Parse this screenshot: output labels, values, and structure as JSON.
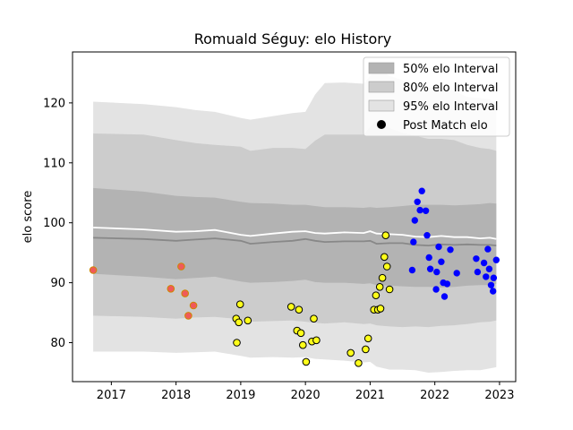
{
  "chart_data": {
    "type": "line",
    "title": "Romuald Séguy: elo History",
    "xlabel": "",
    "ylabel": "elo score",
    "xlim": [
      2016.4,
      2023.25
    ],
    "ylim": [
      73.5,
      128.5
    ],
    "x_ticks": [
      "2017",
      "2018",
      "2019",
      "2020",
      "2021",
      "2022",
      "2023"
    ],
    "x_tick_values": [
      2017,
      2018,
      2019,
      2020,
      2021,
      2022,
      2023
    ],
    "y_ticks": [
      "80",
      "90",
      "100",
      "110",
      "120"
    ],
    "y_tick_values": [
      80,
      90,
      100,
      110,
      120
    ],
    "grid": false,
    "legend_position": "top-right",
    "colors": {
      "band95": "#e3e3e3",
      "band80": "#cccccc",
      "band50": "#b3b3b3",
      "median_line": "#888888",
      "mean_line": "#ffffff",
      "dot_edge": "#000000"
    },
    "legend": [
      {
        "label": "50% elo Interval",
        "kind": "patch",
        "color": "#b3b3b3"
      },
      {
        "label": "80% elo Interval",
        "kind": "patch",
        "color": "#cccccc"
      },
      {
        "label": "95% elo Interval",
        "kind": "patch",
        "color": "#e3e3e3"
      },
      {
        "label": "Post Match elo",
        "kind": "marker",
        "color": "#000000"
      }
    ],
    "x": [
      2016.72,
      2017.5,
      2018.0,
      2018.3,
      2018.6,
      2019.0,
      2019.15,
      2019.5,
      2019.8,
      2020.0,
      2020.15,
      2020.3,
      2020.6,
      2020.9,
      2021.0,
      2021.1,
      2021.3,
      2021.5,
      2021.7,
      2021.9,
      2022.1,
      2022.3,
      2022.5,
      2022.7,
      2022.85,
      2022.95
    ],
    "median": [
      97.5,
      97.3,
      97.0,
      97.2,
      97.4,
      97.0,
      96.5,
      96.8,
      97.0,
      97.3,
      97.0,
      96.8,
      96.9,
      96.9,
      97.0,
      96.5,
      96.6,
      96.6,
      96.3,
      96.2,
      96.4,
      96.3,
      96.4,
      96.3,
      96.3,
      96.2
    ],
    "mean": [
      99.2,
      98.9,
      98.5,
      98.6,
      98.8,
      98.0,
      97.8,
      98.2,
      98.5,
      98.6,
      98.3,
      98.2,
      98.4,
      98.3,
      98.6,
      98.2,
      98.1,
      98.0,
      97.7,
      97.6,
      97.8,
      97.6,
      97.6,
      97.4,
      97.5,
      97.3
    ],
    "band50": {
      "lower": [
        91.5,
        91.0,
        90.6,
        90.8,
        91.0,
        90.2,
        90.0,
        90.1,
        90.3,
        90.5,
        90.1,
        90.0,
        90.0,
        89.8,
        89.9,
        89.6,
        89.5,
        89.4,
        89.3,
        89.3,
        89.2,
        89.3,
        89.5,
        89.6,
        89.6,
        89.8
      ],
      "upper": [
        105.8,
        105.2,
        104.5,
        104.3,
        104.2,
        103.5,
        103.3,
        103.2,
        103.0,
        103.0,
        102.8,
        102.6,
        102.6,
        102.5,
        102.6,
        102.5,
        102.6,
        102.8,
        103.0,
        103.0,
        103.0,
        102.9,
        103.0,
        103.1,
        103.3,
        103.2
      ]
    },
    "band80": {
      "lower": [
        84.5,
        84.3,
        84.0,
        84.2,
        84.3,
        83.9,
        83.5,
        83.6,
        83.7,
        83.5,
        83.3,
        83.2,
        83.4,
        83.1,
        83.2,
        82.9,
        82.7,
        82.6,
        82.7,
        82.6,
        82.8,
        82.9,
        83.1,
        83.4,
        83.5,
        83.7
      ],
      "upper": [
        114.9,
        114.7,
        113.8,
        113.3,
        113.0,
        112.7,
        112.0,
        112.5,
        112.5,
        112.3,
        113.7,
        114.7,
        114.7,
        114.7,
        116.0,
        117.0,
        115.8,
        115.0,
        114.5,
        114.0,
        114.0,
        113.8,
        113.0,
        112.5,
        112.3,
        112.0
      ]
    },
    "band95": {
      "lower": [
        78.5,
        78.5,
        78.3,
        78.4,
        78.5,
        77.8,
        77.5,
        77.6,
        77.5,
        77.6,
        77.3,
        77.2,
        77.0,
        76.7,
        76.8,
        76.0,
        75.5,
        75.5,
        75.4,
        75.0,
        75.1,
        75.3,
        75.4,
        75.4,
        75.7,
        75.9
      ],
      "upper": [
        120.2,
        119.8,
        119.3,
        118.8,
        118.5,
        117.5,
        117.2,
        117.8,
        118.3,
        118.5,
        121.4,
        123.3,
        123.4,
        123.2,
        124.5,
        126.0,
        124.5,
        123.8,
        122.6,
        122.5,
        122.8,
        122.0,
        121.0,
        120.8,
        120.6,
        119.9
      ]
    },
    "series": [
      {
        "marker_color": "#f05a5a",
        "marker_edge": "#cc8800",
        "points": [
          {
            "x": 2016.72,
            "y": 92.1
          },
          {
            "x": 2017.92,
            "y": 89.0
          },
          {
            "x": 2018.08,
            "y": 92.7
          },
          {
            "x": 2018.14,
            "y": 88.2
          },
          {
            "x": 2018.19,
            "y": 84.5
          },
          {
            "x": 2018.27,
            "y": 86.2
          }
        ]
      },
      {
        "marker_color": "#ffff1a",
        "marker_edge": "#000000",
        "points": [
          {
            "x": 2018.93,
            "y": 84.0
          },
          {
            "x": 2018.94,
            "y": 80.0
          },
          {
            "x": 2018.97,
            "y": 83.4
          },
          {
            "x": 2018.99,
            "y": 86.4
          },
          {
            "x": 2019.11,
            "y": 83.7
          },
          {
            "x": 2019.78,
            "y": 86.0
          },
          {
            "x": 2019.87,
            "y": 82.0
          },
          {
            "x": 2019.9,
            "y": 85.5
          },
          {
            "x": 2019.93,
            "y": 81.6
          },
          {
            "x": 2019.96,
            "y": 79.6
          },
          {
            "x": 2020.01,
            "y": 76.8
          },
          {
            "x": 2020.1,
            "y": 80.2
          },
          {
            "x": 2020.13,
            "y": 84.0
          },
          {
            "x": 2020.17,
            "y": 80.4
          },
          {
            "x": 2020.7,
            "y": 78.3
          },
          {
            "x": 2020.82,
            "y": 76.6
          },
          {
            "x": 2020.93,
            "y": 78.9
          },
          {
            "x": 2020.97,
            "y": 80.7
          },
          {
            "x": 2021.06,
            "y": 85.5
          },
          {
            "x": 2021.09,
            "y": 87.9
          },
          {
            "x": 2021.12,
            "y": 85.5
          },
          {
            "x": 2021.15,
            "y": 89.3
          },
          {
            "x": 2021.16,
            "y": 85.7
          },
          {
            "x": 2021.19,
            "y": 90.8
          },
          {
            "x": 2021.22,
            "y": 94.3
          },
          {
            "x": 2021.24,
            "y": 97.9
          },
          {
            "x": 2021.26,
            "y": 92.7
          },
          {
            "x": 2021.3,
            "y": 88.9
          }
        ]
      },
      {
        "marker_color": "#0000ff",
        "marker_edge": "#0000ff",
        "points": [
          {
            "x": 2021.65,
            "y": 92.1
          },
          {
            "x": 2021.67,
            "y": 96.8
          },
          {
            "x": 2021.69,
            "y": 100.4
          },
          {
            "x": 2021.73,
            "y": 103.5
          },
          {
            "x": 2021.77,
            "y": 102.1
          },
          {
            "x": 2021.8,
            "y": 105.3
          },
          {
            "x": 2021.86,
            "y": 102.0
          },
          {
            "x": 2021.88,
            "y": 97.9
          },
          {
            "x": 2021.91,
            "y": 94.2
          },
          {
            "x": 2021.93,
            "y": 92.3
          },
          {
            "x": 2022.02,
            "y": 88.9
          },
          {
            "x": 2022.03,
            "y": 91.8
          },
          {
            "x": 2022.06,
            "y": 96.0
          },
          {
            "x": 2022.1,
            "y": 93.5
          },
          {
            "x": 2022.13,
            "y": 90.0
          },
          {
            "x": 2022.15,
            "y": 87.7
          },
          {
            "x": 2022.19,
            "y": 89.8
          },
          {
            "x": 2022.24,
            "y": 95.5
          },
          {
            "x": 2022.34,
            "y": 91.6
          },
          {
            "x": 2022.64,
            "y": 94.0
          },
          {
            "x": 2022.66,
            "y": 91.8
          },
          {
            "x": 2022.76,
            "y": 93.3
          },
          {
            "x": 2022.79,
            "y": 91.0
          },
          {
            "x": 2022.82,
            "y": 95.6
          },
          {
            "x": 2022.84,
            "y": 92.3
          },
          {
            "x": 2022.87,
            "y": 89.6
          },
          {
            "x": 2022.9,
            "y": 88.6
          },
          {
            "x": 2022.91,
            "y": 90.8
          },
          {
            "x": 2022.95,
            "y": 93.8
          }
        ]
      }
    ]
  }
}
